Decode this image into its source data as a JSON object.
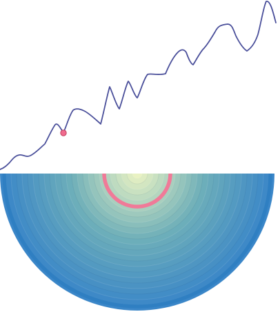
{
  "colors": {
    "background": "#ffffff",
    "terrain_line": "#4a4f9a",
    "player_fill": "#f06b8e",
    "player_stroke": "#c0405f",
    "portal_ring": "#f07a98",
    "planet_outer": "#3a86c8",
    "planet_core": "#f2f7c4"
  },
  "icons": {
    "player": "pink-ball-icon"
  }
}
